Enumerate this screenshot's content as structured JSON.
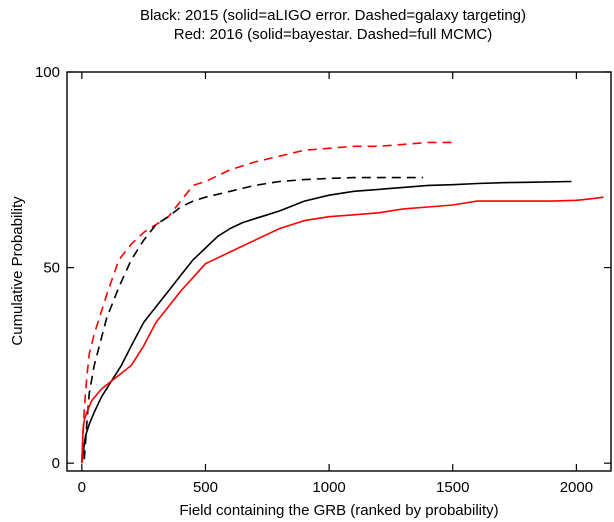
{
  "chart_data": {
    "type": "line",
    "title_lines": [
      "Black: 2015 (solid=aLIGO error. Dashed=galaxy targeting)",
      "Red: 2016 (solid=bayestar. Dashed=full MCMC)"
    ],
    "xlabel": "Field containing the GRB (ranked by probability)",
    "ylabel": "Cumulative Probability",
    "xlim": [
      -60,
      2140
    ],
    "ylim": [
      -2,
      100
    ],
    "xticks": [
      0,
      500,
      1000,
      1500,
      2000
    ],
    "yticks": [
      0,
      50,
      100
    ],
    "xtick_labels": [
      "0",
      "500",
      "1000",
      "1500",
      "2000"
    ],
    "ytick_labels": [
      "0",
      "50",
      "100"
    ],
    "grid": false,
    "series": [
      {
        "color": "#000000",
        "dash": "solid",
        "x": [
          0,
          15,
          30,
          50,
          80,
          120,
          160,
          200,
          250,
          300,
          350,
          400,
          450,
          500,
          550,
          600,
          650,
          700,
          750,
          800,
          900,
          1000,
          1100,
          1200,
          1300,
          1400,
          1500,
          1600,
          1700,
          1800,
          1980
        ],
        "y": [
          0,
          7,
          10,
          13,
          17,
          21,
          25,
          30,
          36,
          40,
          44,
          48,
          52,
          55,
          58,
          60,
          61.5,
          62.5,
          63.5,
          64.5,
          67,
          68.5,
          69.5,
          70,
          70.5,
          71,
          71.2,
          71.5,
          71.7,
          71.8,
          72
        ]
      },
      {
        "color": "#ff0000",
        "dash": "dashed",
        "x": [
          0,
          10,
          20,
          30,
          50,
          75,
          100,
          150,
          200,
          250,
          300,
          350,
          400,
          450,
          500,
          600,
          700,
          800,
          900,
          1000,
          1100,
          1200,
          1300,
          1400,
          1510
        ],
        "y": [
          0,
          14,
          22,
          28,
          33,
          38,
          43,
          52,
          56,
          59,
          61,
          63,
          67,
          71,
          72,
          75,
          77,
          78.5,
          80,
          80.5,
          81,
          81,
          81.5,
          82,
          82
        ]
      },
      {
        "color": "#000000",
        "dash": "dashed",
        "x": [
          10,
          20,
          30,
          50,
          75,
          100,
          150,
          200,
          250,
          300,
          350,
          400,
          450,
          500,
          600,
          700,
          800,
          900,
          1000,
          1100,
          1200,
          1300,
          1380
        ],
        "y": [
          1,
          10,
          18,
          25,
          31,
          37,
          45,
          52,
          57,
          61,
          63,
          65.5,
          67,
          68,
          69.5,
          71,
          72,
          72.5,
          72.8,
          73,
          73,
          73,
          73
        ]
      },
      {
        "color": "#ff0000",
        "dash": "solid",
        "x": [
          0,
          5,
          10,
          20,
          40,
          80,
          120,
          160,
          200,
          250,
          300,
          400,
          500,
          600,
          700,
          800,
          900,
          1000,
          1100,
          1200,
          1300,
          1400,
          1500,
          1550,
          1600,
          1700,
          1800,
          1900,
          2000,
          2050,
          2110
        ],
        "y": [
          0,
          9,
          11,
          13,
          16,
          19,
          21,
          23,
          25,
          30,
          36,
          44,
          51,
          54,
          57,
          60,
          62,
          63,
          63.5,
          64,
          65,
          65.5,
          66,
          66.5,
          67,
          67,
          67,
          67,
          67.2,
          67.5,
          68
        ]
      }
    ]
  }
}
